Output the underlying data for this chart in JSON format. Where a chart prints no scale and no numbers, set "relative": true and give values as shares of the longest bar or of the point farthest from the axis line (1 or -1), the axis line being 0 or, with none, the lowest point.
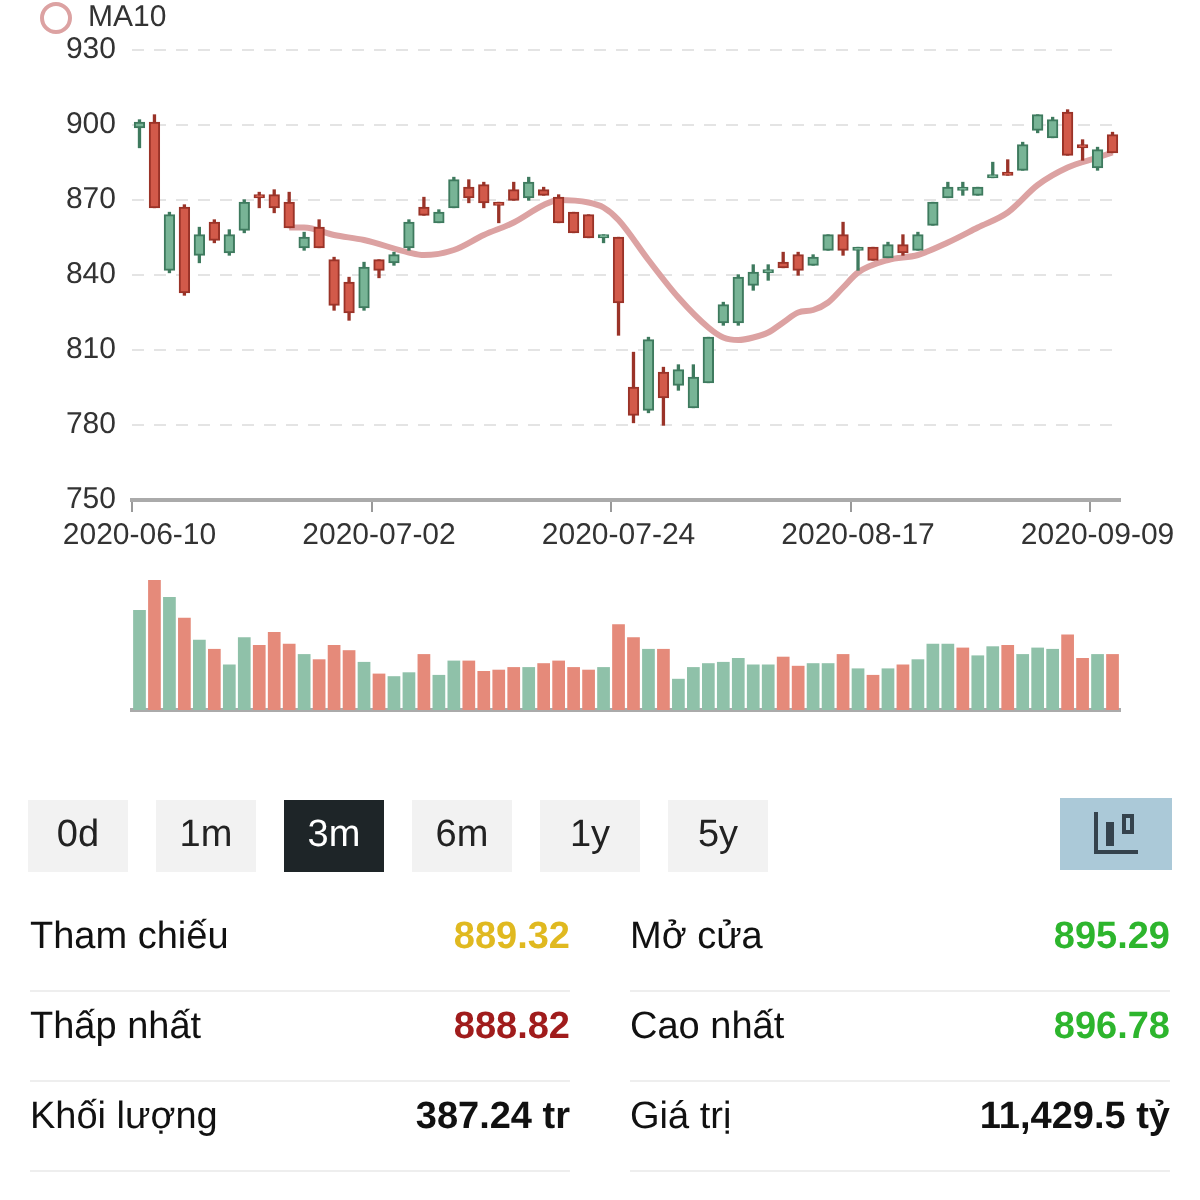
{
  "chart_data": [
    {
      "type": "candlestick",
      "categories": [
        "2020-06-10",
        null,
        null,
        null,
        null,
        null,
        null,
        null,
        null,
        null,
        null,
        null,
        null,
        null,
        null,
        null,
        "2020-07-02",
        null,
        null,
        null,
        null,
        null,
        null,
        null,
        null,
        null,
        null,
        null,
        null,
        null,
        null,
        null,
        "2020-07-24",
        null,
        null,
        null,
        null,
        null,
        null,
        null,
        null,
        null,
        null,
        null,
        null,
        null,
        null,
        null,
        "2020-08-17",
        null,
        null,
        null,
        null,
        null,
        null,
        null,
        null,
        null,
        null,
        null,
        null,
        null,
        null,
        null,
        "2020-09-09",
        null
      ],
      "ohlc": [
        [
          899,
          902,
          891,
          901
        ],
        [
          901,
          904,
          867,
          867
        ],
        [
          842,
          865,
          841,
          864
        ],
        [
          867,
          868,
          832,
          833
        ],
        [
          848,
          859,
          845,
          856
        ],
        [
          861,
          862,
          853,
          854
        ],
        [
          849,
          858,
          848,
          856
        ],
        [
          858,
          870,
          857,
          869
        ],
        [
          872,
          873,
          867,
          871
        ],
        [
          872,
          874,
          865,
          867
        ],
        [
          869,
          873,
          859,
          859
        ],
        [
          851,
          857,
          850,
          855
        ],
        [
          859,
          862,
          851,
          851
        ],
        [
          846,
          847,
          826,
          828
        ],
        [
          837,
          839,
          822,
          825
        ],
        [
          827,
          845,
          826,
          843
        ],
        [
          846,
          846,
          839,
          842
        ],
        [
          845,
          849,
          844,
          848
        ],
        [
          851,
          862,
          850,
          861
        ],
        [
          867,
          871,
          864,
          864
        ],
        [
          861,
          866,
          861,
          865
        ],
        [
          867,
          879,
          867,
          878
        ],
        [
          875,
          878,
          869,
          871
        ],
        [
          876,
          877,
          867,
          869
        ],
        [
          869,
          869,
          861,
          868
        ],
        [
          874,
          877,
          870,
          870
        ],
        [
          871,
          879,
          870,
          877
        ],
        [
          874,
          875,
          872,
          872
        ],
        [
          871,
          872,
          861,
          861
        ],
        [
          865,
          865,
          857,
          857
        ],
        [
          864,
          864,
          855,
          855
        ],
        [
          855,
          856,
          853,
          856
        ],
        [
          855,
          855,
          816,
          829
        ],
        [
          795,
          809,
          781,
          784
        ],
        [
          786,
          815,
          785,
          814
        ],
        [
          801,
          803,
          780,
          791
        ],
        [
          796,
          804,
          794,
          802
        ],
        [
          787,
          804,
          787,
          799
        ],
        [
          797,
          815,
          797,
          815
        ],
        [
          821,
          829,
          820,
          828
        ],
        [
          821,
          840,
          820,
          839
        ],
        [
          836,
          844,
          834,
          841
        ],
        [
          841,
          844,
          838,
          842
        ],
        [
          845,
          849,
          843,
          843
        ],
        [
          848,
          849,
          840,
          842
        ],
        [
          844,
          848,
          844,
          847
        ],
        [
          850,
          856,
          850,
          856
        ],
        [
          856,
          861,
          848,
          850
        ],
        [
          850,
          851,
          842,
          851
        ],
        [
          851,
          851,
          846,
          846
        ],
        [
          847,
          853,
          847,
          852
        ],
        [
          852,
          856,
          848,
          849
        ],
        [
          850,
          857,
          850,
          856
        ],
        [
          860,
          869,
          860,
          869
        ],
        [
          871,
          877,
          871,
          875
        ],
        [
          874,
          877,
          872,
          875
        ],
        [
          872,
          875,
          872,
          875
        ],
        [
          879,
          885,
          879,
          880
        ],
        [
          881,
          886,
          880,
          880
        ],
        [
          882,
          893,
          882,
          892
        ],
        [
          898,
          904,
          897,
          904
        ],
        [
          895,
          903,
          895,
          902
        ],
        [
          905,
          906,
          888,
          888
        ],
        [
          892,
          894,
          886,
          891
        ],
        [
          883,
          891,
          882,
          890
        ],
        [
          896,
          897,
          889,
          889
        ]
      ],
      "series": [
        {
          "name": "MA10",
          "type": "line",
          "color": "#dca2a2",
          "values": [
            null,
            null,
            null,
            null,
            null,
            null,
            null,
            null,
            null,
            null,
            859,
            859,
            null,
            856,
            null,
            854,
            null,
            null,
            849,
            848,
            null,
            850,
            null,
            856,
            null,
            861,
            null,
            868,
            870,
            null,
            869,
            867,
            862,
            null,
            846,
            null,
            831,
            null,
            819,
            815,
            814,
            815,
            817,
            821,
            825,
            826,
            829,
            835,
            841,
            null,
            846,
            null,
            848,
            null,
            853,
            null,
            859,
            null,
            865,
            null,
            876,
            null,
            883,
            null,
            887,
            889
          ]
        }
      ],
      "ylim": [
        750,
        930
      ],
      "yticks": [
        750,
        780,
        810,
        840,
        870,
        900,
        930
      ],
      "grid": "y",
      "legend": "top left",
      "marker": "none"
    },
    {
      "type": "bar",
      "categories": [
        null,
        null,
        null,
        null,
        null,
        null,
        null,
        null,
        null,
        null,
        null,
        null,
        null,
        null,
        null,
        null,
        null,
        null,
        null,
        null,
        null,
        null,
        null,
        null,
        null,
        null,
        null,
        null,
        null,
        null,
        null,
        null,
        null,
        null,
        null,
        null,
        null,
        null,
        null,
        null,
        null,
        null,
        null,
        null,
        null,
        null,
        null,
        null,
        null,
        null,
        null,
        null,
        null,
        null,
        null,
        null,
        null,
        null,
        null,
        null,
        null,
        null,
        null,
        null,
        null,
        null
      ],
      "values": [
        0.77,
        1,
        0.87,
        0.71,
        0.54,
        0.47,
        0.35,
        0.56,
        0.5,
        0.6,
        0.51,
        0.43,
        0.39,
        0.5,
        0.46,
        0.37,
        0.28,
        0.26,
        0.29,
        0.43,
        0.27,
        0.38,
        0.38,
        0.3,
        0.31,
        0.33,
        0.33,
        0.36,
        0.38,
        0.33,
        0.31,
        0.33,
        0.66,
        0.56,
        0.47,
        0.47,
        0.24,
        0.33,
        0.36,
        0.37,
        0.4,
        0.35,
        0.35,
        0.41,
        0.34,
        0.36,
        0.36,
        0.43,
        0.32,
        0.27,
        0.32,
        0.35,
        0.39,
        0.51,
        0.51,
        0.48,
        0.42,
        0.49,
        0.5,
        0.43,
        0.48,
        0.47,
        0.58,
        0.4,
        0.43,
        0.43
      ],
      "colors": [
        "#8fc1a9",
        "#e58a7a",
        "#8fc1a9",
        "#e58a7a",
        "#8fc1a9",
        "#e58a7a",
        "#8fc1a9",
        "#8fc1a9",
        "#e58a7a",
        "#e58a7a",
        "#e58a7a",
        "#8fc1a9",
        "#e58a7a",
        "#e58a7a",
        "#e58a7a",
        "#8fc1a9",
        "#e58a7a",
        "#8fc1a9",
        "#8fc1a9",
        "#e58a7a",
        "#8fc1a9",
        "#8fc1a9",
        "#e58a7a",
        "#e58a7a",
        "#e58a7a",
        "#e58a7a",
        "#8fc1a9",
        "#e58a7a",
        "#e58a7a",
        "#e58a7a",
        "#e58a7a",
        "#8fc1a9",
        "#e58a7a",
        "#e58a7a",
        "#8fc1a9",
        "#e58a7a",
        "#8fc1a9",
        "#8fc1a9",
        "#8fc1a9",
        "#8fc1a9",
        "#8fc1a9",
        "#8fc1a9",
        "#8fc1a9",
        "#e58a7a",
        "#e58a7a",
        "#8fc1a9",
        "#8fc1a9",
        "#e58a7a",
        "#8fc1a9",
        "#e58a7a",
        "#8fc1a9",
        "#e58a7a",
        "#8fc1a9",
        "#8fc1a9",
        "#8fc1a9",
        "#e58a7a",
        "#8fc1a9",
        "#8fc1a9",
        "#e58a7a",
        "#8fc1a9",
        "#8fc1a9",
        "#8fc1a9",
        "#e58a7a",
        "#e58a7a",
        "#8fc1a9",
        "#e58a7a"
      ],
      "relative": true
    },
    {
      "type": "other",
      "annotations": [
        "0d",
        "1m",
        "3m",
        "6m",
        "1y",
        "5y"
      ],
      "categories": [
        "Tham chiếu",
        "Mở cửa",
        "Thấp nhất",
        "Cao nhất",
        "Khối lượng",
        "Giá trị"
      ],
      "value_labels": [
        "889.32",
        "895.29",
        "888.82",
        "896.78",
        "387.24 tr",
        "11,429.5 tỷ"
      ],
      "colors": [
        "#e0b920",
        "#2db52d",
        "#a01c1c",
        "#2db52d",
        "#111111",
        "#111111"
      ]
    }
  ]
}
